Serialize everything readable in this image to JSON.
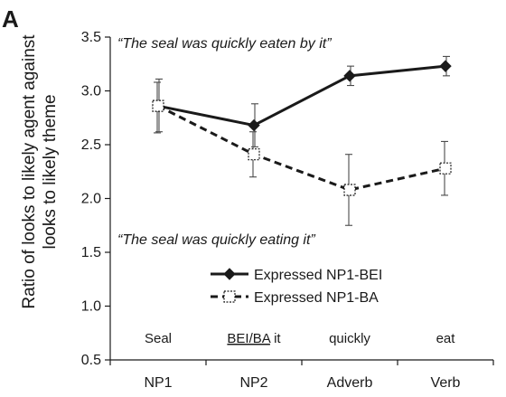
{
  "panel_label": "A",
  "chart_data": {
    "type": "line",
    "ylabel_lines": [
      "Ratio of looks to likely agent against",
      "looks to likely theme"
    ],
    "xlabel": "",
    "categories": [
      "NP1",
      "NP2",
      "Adverb",
      "Verb"
    ],
    "ylim": [
      0.5,
      3.5
    ],
    "yticks": [
      "0.5",
      "1.0",
      "1.5",
      "2.0",
      "2.5",
      "3.0",
      "3.5"
    ],
    "grid": false,
    "legend_position": "center",
    "series": [
      {
        "name": "Expressed NP1-BEI",
        "values": [
          2.86,
          2.68,
          3.14,
          3.23
        ],
        "error_low": [
          2.62,
          2.48,
          3.05,
          3.14
        ],
        "error_high": [
          3.11,
          2.88,
          3.23,
          3.32
        ],
        "line_style": "solid",
        "marker": "filled-diamond",
        "color": "#1a1a1a"
      },
      {
        "name": "Expressed NP1-BA",
        "values": [
          2.86,
          2.41,
          2.08,
          2.28
        ],
        "error_low": [
          2.61,
          2.2,
          1.75,
          2.03
        ],
        "error_high": [
          3.08,
          2.62,
          2.41,
          2.53
        ],
        "line_style": "dashed",
        "marker": "open-square",
        "color": "#1a1a1a"
      }
    ],
    "annotations": {
      "top_quote": "“The seal was quickly eaten by it”",
      "bottom_quote": "“The seal was quickly eating it”"
    },
    "region_words": [
      {
        "underlined": "",
        "rest": "Seal"
      },
      {
        "underlined": "BEI/BA",
        "rest": " it"
      },
      {
        "underlined": "",
        "rest": "quickly"
      },
      {
        "underlined": "",
        "rest": "eat"
      }
    ]
  }
}
